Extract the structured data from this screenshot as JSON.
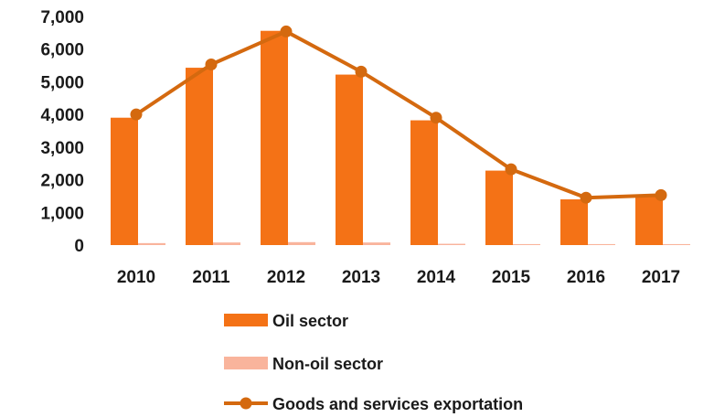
{
  "chart_data": {
    "type": "bar",
    "categories": [
      "2010",
      "2011",
      "2012",
      "2013",
      "2014",
      "2015",
      "2016",
      "2017"
    ],
    "ylim": [
      0,
      7000
    ],
    "yticks": [
      0,
      1000,
      2000,
      3000,
      4000,
      5000,
      6000,
      7000
    ],
    "ytick_labels": [
      "0",
      "1,000",
      "2,000",
      "3,000",
      "4,000",
      "5,000",
      "6,000",
      "7,000"
    ],
    "grid": false,
    "legend_position": "bottom",
    "series": [
      {
        "name": "Oil sector",
        "type": "bar",
        "color": "#f47216",
        "values": [
          3900,
          5430,
          6560,
          5220,
          3820,
          2280,
          1400,
          1500
        ]
      },
      {
        "name": "Non-oil sector",
        "type": "bar",
        "color": "#f9b49c",
        "values": [
          60,
          80,
          90,
          80,
          40,
          30,
          30,
          30
        ]
      },
      {
        "name": "Goods and services exportation",
        "type": "line",
        "color": "#d4690f",
        "values": [
          4000,
          5530,
          6540,
          5310,
          3900,
          2320,
          1450,
          1530
        ]
      }
    ]
  }
}
